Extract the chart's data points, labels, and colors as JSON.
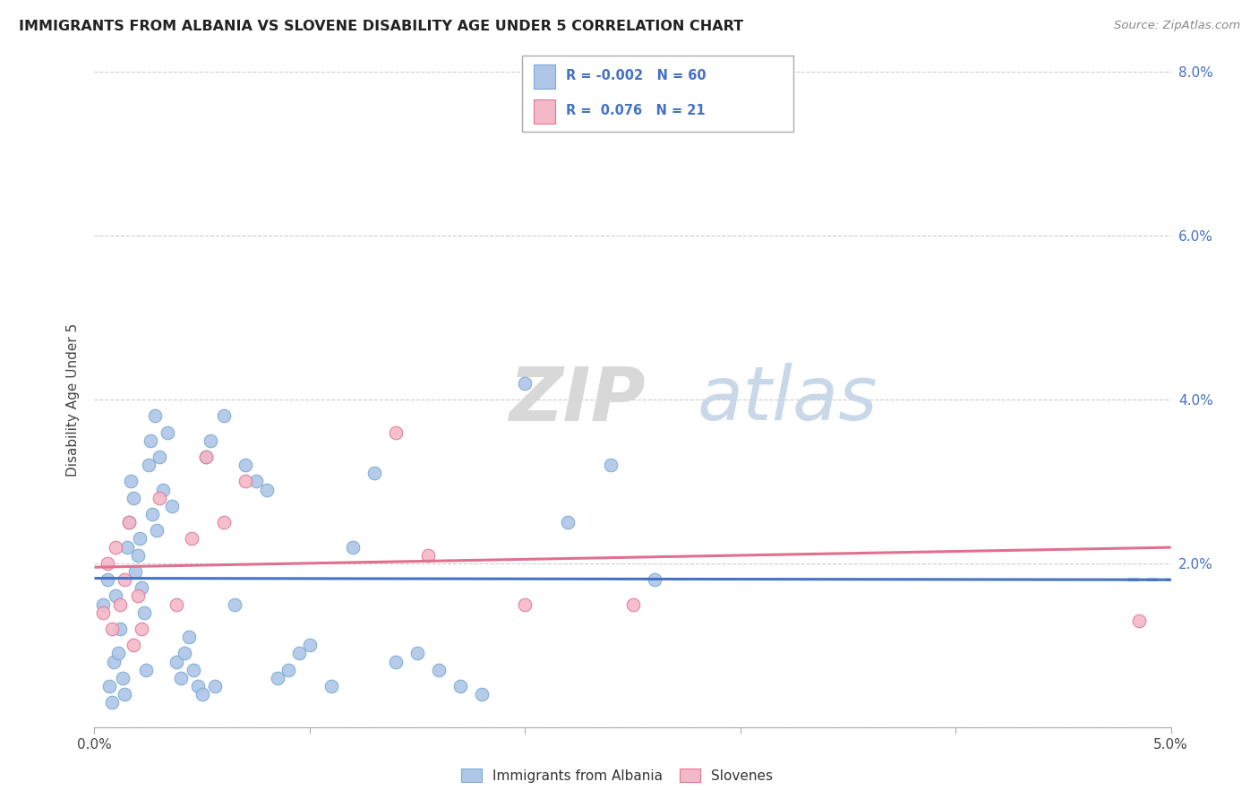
{
  "title": "IMMIGRANTS FROM ALBANIA VS SLOVENE DISABILITY AGE UNDER 5 CORRELATION CHART",
  "source": "Source: ZipAtlas.com",
  "ylabel": "Disability Age Under 5",
  "xlim": [
    0.0,
    5.0
  ],
  "ylim": [
    0.0,
    8.0
  ],
  "albania_color": "#aec6e8",
  "albania_edge": "#7aaad0",
  "slovenes_color": "#f4b8c8",
  "slovenes_edge": "#e07898",
  "albania_line_color": "#4472c4",
  "slovenes_line_color": "#e07090",
  "legend_text_color": "#4472c4",
  "legend_r_albania": "-0.002",
  "legend_n_albania": "60",
  "legend_r_slovenes": "0.076",
  "legend_n_slovenes": "21",
  "albania_points_x": [
    0.04,
    0.06,
    0.07,
    0.08,
    0.09,
    0.1,
    0.11,
    0.12,
    0.13,
    0.14,
    0.15,
    0.16,
    0.17,
    0.18,
    0.19,
    0.2,
    0.21,
    0.22,
    0.23,
    0.24,
    0.25,
    0.26,
    0.27,
    0.28,
    0.29,
    0.3,
    0.32,
    0.34,
    0.36,
    0.38,
    0.4,
    0.42,
    0.44,
    0.46,
    0.48,
    0.5,
    0.52,
    0.54,
    0.56,
    0.6,
    0.65,
    0.7,
    0.75,
    0.8,
    0.85,
    0.9,
    0.95,
    1.0,
    1.1,
    1.2,
    1.3,
    1.4,
    1.5,
    1.6,
    1.7,
    1.8,
    2.0,
    2.2,
    2.4,
    2.6
  ],
  "albania_points_y": [
    1.5,
    1.8,
    0.5,
    0.3,
    0.8,
    1.6,
    0.9,
    1.2,
    0.6,
    0.4,
    2.2,
    2.5,
    3.0,
    2.8,
    1.9,
    2.1,
    2.3,
    1.7,
    1.4,
    0.7,
    3.2,
    3.5,
    2.6,
    3.8,
    2.4,
    3.3,
    2.9,
    3.6,
    2.7,
    0.8,
    0.6,
    0.9,
    1.1,
    0.7,
    0.5,
    0.4,
    3.3,
    3.5,
    0.5,
    3.8,
    1.5,
    3.2,
    3.0,
    2.9,
    0.6,
    0.7,
    0.9,
    1.0,
    0.5,
    2.2,
    3.1,
    0.8,
    0.9,
    0.7,
    0.5,
    0.4,
    4.2,
    2.5,
    3.2,
    1.8
  ],
  "slovenes_points_x": [
    0.04,
    0.06,
    0.08,
    0.1,
    0.12,
    0.14,
    0.16,
    0.18,
    0.2,
    0.22,
    0.3,
    0.38,
    0.45,
    0.52,
    0.6,
    0.7,
    1.4,
    1.55,
    2.0,
    2.5,
    4.85
  ],
  "slovenes_points_y": [
    1.4,
    2.0,
    1.2,
    2.2,
    1.5,
    1.8,
    2.5,
    1.0,
    1.6,
    1.2,
    2.8,
    1.5,
    2.3,
    3.3,
    2.5,
    3.0,
    3.6,
    2.1,
    1.5,
    1.5,
    1.3
  ]
}
